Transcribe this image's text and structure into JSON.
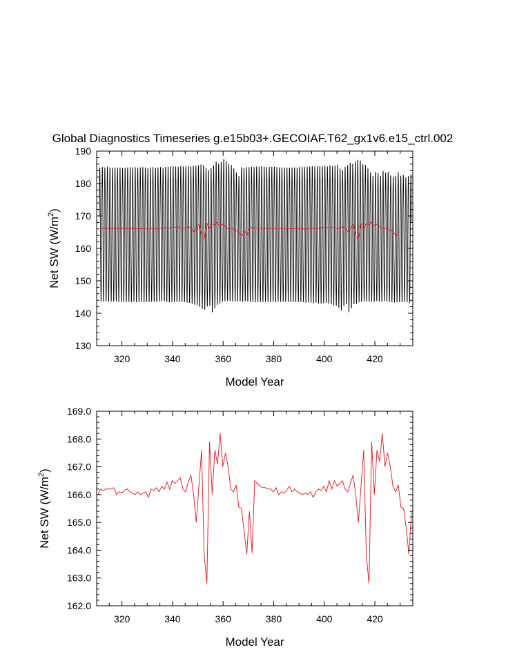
{
  "title": "Global Diagnostics Timeseries g.e15b03+.GECOIAF.T62_gx1v6.e15_ctrl.002",
  "chart_data": [
    {
      "type": "line",
      "xlabel": "Model Year",
      "ylabel": "Net SW (W/m",
      "ylabel_sup": "2",
      "ylabel_close": ")",
      "xlim": [
        310,
        435
      ],
      "ylim": [
        130,
        190
      ],
      "xticks": [
        320,
        340,
        360,
        380,
        400,
        420
      ],
      "yticks": [
        130,
        140,
        150,
        160,
        170,
        180,
        190
      ],
      "ytick_decimals": 0,
      "x_start": 311,
      "x_end": 434.5,
      "monthly_min": [
        143.0,
        142.9,
        143.0,
        142.9,
        143.0,
        142.9,
        143.0,
        142.8,
        142.9,
        142.9,
        142.8,
        142.9,
        142.8,
        142.9,
        142.7,
        142.8,
        142.8,
        142.7,
        142.9,
        142.8,
        142.9,
        142.9,
        142.8,
        143.0,
        143.0,
        143.1,
        142.8,
        142.7,
        142.9,
        142.9,
        142.8,
        142.9,
        142.8,
        142.8,
        142.6,
        142.5,
        142.3,
        142.0,
        141.8,
        141.3,
        140.6,
        140.4,
        141.4,
        141.7,
        139.6,
        140.9,
        141.9,
        142.3,
        142.9,
        143.0,
        143.2,
        143.1,
        143.0,
        142.9,
        143.1,
        143.0,
        142.9,
        143.1,
        143.0,
        142.9,
        142.8,
        142.7,
        142.8,
        142.8,
        142.8,
        142.9,
        142.8,
        142.8,
        142.9,
        142.7,
        142.9,
        142.9,
        142.9,
        142.9,
        142.9,
        142.8,
        142.8,
        142.8,
        142.8,
        142.8,
        142.8,
        142.6,
        142.7,
        142.6,
        142.4,
        142.6,
        142.3,
        142.3,
        142.4,
        142.5,
        142.3,
        142.1,
        141.8,
        141.6,
        141.0,
        140.2,
        141.7,
        142.1,
        139.6,
        140.9,
        142.1,
        142.3,
        142.7,
        142.8,
        143.0,
        142.9,
        142.9,
        143.0,
        142.9,
        143.1,
        143.0,
        142.9,
        143.1,
        143.0,
        142.9,
        142.8,
        142.7,
        142.8,
        142.8,
        142.8,
        142.9,
        142.8,
        142.6,
        142.3
      ],
      "monthly_max": [
        185.6,
        185.7,
        185.6,
        185.8,
        185.6,
        185.5,
        185.6,
        185.5,
        185.6,
        185.4,
        185.5,
        185.6,
        185.7,
        185.6,
        185.7,
        185.5,
        185.6,
        185.7,
        185.6,
        185.4,
        185.6,
        185.7,
        185.5,
        185.6,
        185.7,
        185.4,
        185.7,
        185.8,
        185.9,
        186.0,
        185.9,
        185.8,
        186.0,
        185.9,
        185.9,
        186.1,
        186.0,
        186.1,
        186.2,
        186.3,
        186.6,
        186.4,
        185.5,
        184.8,
        185.5,
        186.3,
        187.5,
        186.8,
        187.3,
        188.2,
        187.5,
        186.6,
        186.4,
        185.3,
        184.0,
        182.9,
        185.6,
        185.4,
        185.7,
        185.7,
        185.8,
        185.7,
        185.9,
        185.8,
        186.0,
        185.8,
        185.7,
        185.8,
        185.8,
        185.8,
        185.7,
        185.6,
        185.6,
        185.5,
        185.6,
        185.5,
        185.6,
        185.6,
        185.5,
        185.7,
        185.8,
        185.7,
        185.8,
        185.9,
        186.0,
        185.9,
        186.0,
        186.1,
        186.0,
        186.2,
        185.9,
        186.3,
        186.0,
        186.2,
        186.5,
        185.3,
        184.8,
        185.8,
        186.4,
        187.1,
        186.8,
        187.5,
        188.0,
        187.8,
        186.6,
        186.4,
        185.3,
        184.0,
        182.9,
        184.2,
        183.8,
        183.0,
        184.5,
        183.9,
        184.2,
        183.1,
        182.8,
        183.0,
        184.1,
        183.0,
        183.2,
        182.5,
        182.9,
        183.5
      ],
      "annual_mean": [
        166.0,
        166.2,
        166.15,
        166.2,
        166.2,
        166.2,
        166.25,
        166.0,
        166.1,
        166.05,
        166.15,
        166.2,
        166.1,
        166.05,
        166.0,
        166.1,
        166.0,
        166.05,
        166.1,
        165.9,
        166.2,
        166.15,
        166.25,
        166.1,
        166.3,
        166.2,
        166.45,
        166.2,
        166.5,
        166.4,
        166.5,
        166.6,
        166.2,
        166.1,
        166.45,
        166.7,
        166.0,
        165.0,
        166.3,
        167.6,
        163.8,
        162.8,
        167.9,
        166.0,
        167.6,
        167.1,
        168.2,
        167.0,
        167.5,
        167.0,
        166.2,
        166.1,
        166.35,
        165.55,
        165.5,
        164.7,
        163.85,
        165.4,
        163.9,
        166.5,
        166.4,
        166.3,
        166.25,
        166.25,
        166.2,
        166.2,
        166.1,
        166.25,
        166.0,
        166.1,
        166.05,
        166.15,
        166.3,
        166.1,
        166.2,
        166.1,
        166.05,
        166.0,
        166.05,
        166.0,
        166.1,
        165.9,
        166.1,
        166.2,
        166.15,
        166.3,
        166.1,
        166.5,
        166.2,
        166.5,
        166.3,
        166.4,
        166.5,
        166.2,
        166.1,
        166.4,
        166.7,
        166.0,
        165.0,
        166.3,
        167.6,
        163.8,
        162.8,
        167.9,
        166.0,
        167.6,
        167.2,
        168.2,
        167.0,
        167.5,
        167.0,
        166.3,
        166.1,
        166.35,
        165.55,
        165.5,
        164.8,
        163.85,
        165.4
      ]
    },
    {
      "type": "line",
      "xlabel": "Model Year",
      "ylabel": "Net SW (W/m",
      "ylabel_sup": "2",
      "ylabel_close": ")",
      "xlim": [
        310,
        435
      ],
      "ylim": [
        162.0,
        169.0
      ],
      "xticks": [
        320,
        340,
        360,
        380,
        400,
        420
      ],
      "yticks": [
        162.0,
        163.0,
        164.0,
        165.0,
        166.0,
        167.0,
        168.0,
        169.0
      ],
      "ytick_decimals": 1,
      "x_start": 310.5,
      "x_end": 434.5,
      "series": [
        {
          "color": "#e8242c",
          "values": [
            166.0,
            166.2,
            166.15,
            166.2,
            166.2,
            166.2,
            166.25,
            166.0,
            166.1,
            166.05,
            166.15,
            166.2,
            166.1,
            166.05,
            166.0,
            166.1,
            166.0,
            166.05,
            166.1,
            165.9,
            166.2,
            166.15,
            166.25,
            166.1,
            166.3,
            166.2,
            166.45,
            166.2,
            166.5,
            166.4,
            166.5,
            166.6,
            166.2,
            166.1,
            166.45,
            166.7,
            166.0,
            165.0,
            166.3,
            167.6,
            163.8,
            162.8,
            167.9,
            166.0,
            167.6,
            167.1,
            168.2,
            167.0,
            167.5,
            167.0,
            166.2,
            166.1,
            166.35,
            165.55,
            165.5,
            164.7,
            163.85,
            165.4,
            163.9,
            166.5,
            166.4,
            166.3,
            166.25,
            166.25,
            166.2,
            166.2,
            166.1,
            166.25,
            166.0,
            166.1,
            166.05,
            166.15,
            166.3,
            166.1,
            166.2,
            166.1,
            166.05,
            166.0,
            166.05,
            166.0,
            166.1,
            165.9,
            166.1,
            166.2,
            166.15,
            166.3,
            166.1,
            166.5,
            166.2,
            166.5,
            166.3,
            166.4,
            166.5,
            166.2,
            166.1,
            166.4,
            166.7,
            166.0,
            165.0,
            166.3,
            167.6,
            163.8,
            162.8,
            167.9,
            166.0,
            167.6,
            167.2,
            168.2,
            167.0,
            167.5,
            167.0,
            166.3,
            166.1,
            166.35,
            165.55,
            165.5,
            164.8,
            163.85,
            165.4
          ]
        }
      ]
    }
  ]
}
